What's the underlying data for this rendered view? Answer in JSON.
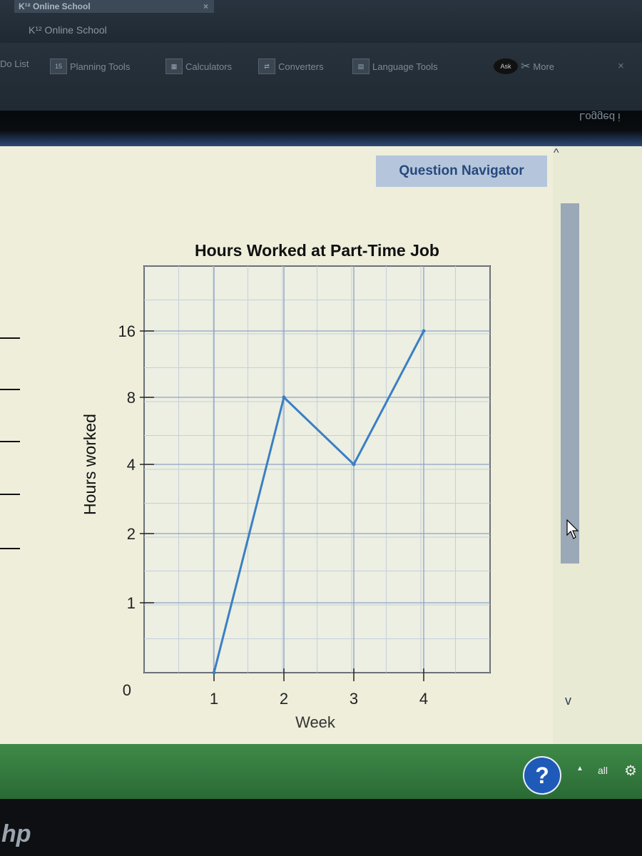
{
  "browser": {
    "tab_title": "K¹² Online School",
    "tab_close": "×",
    "site_label": "K¹² Online School"
  },
  "toolbar": {
    "items": [
      {
        "icon": "list-icon",
        "label": "Do List"
      },
      {
        "icon": "calendar-icon",
        "label": "Planning Tools"
      },
      {
        "icon": "calculator-icon",
        "label": "Calculators"
      },
      {
        "icon": "converter-icon",
        "label": "Converters"
      },
      {
        "icon": "language-icon",
        "label": "Language Tools"
      }
    ],
    "ask_label": "Ask",
    "more_label": "More",
    "close": "×"
  },
  "header": {
    "logged_text": "Logged i"
  },
  "question_navigator": {
    "label": "Question Navigator"
  },
  "scrollbar": {
    "up": "^",
    "down": "v"
  },
  "chart_data": {
    "type": "line",
    "title": "Hours Worked at Part-Time Job",
    "xlabel": "Week",
    "ylabel": "Hours worked",
    "x": [
      1,
      2,
      3,
      4
    ],
    "x_tick_labels": [
      "1",
      "2",
      "3",
      "4"
    ],
    "y_tick_labels": [
      "0",
      "1",
      "2",
      "4",
      "8",
      "16"
    ],
    "y_scale": "nonlinear (0 then doubling)",
    "series": [
      {
        "values": [
          0,
          8,
          4,
          16
        ]
      }
    ],
    "grid": true,
    "color": "#3b7fc4"
  },
  "taskbar": {
    "help": "?",
    "tray_arrow": "▲",
    "signal": "all"
  },
  "device": {
    "logo": "hp"
  }
}
